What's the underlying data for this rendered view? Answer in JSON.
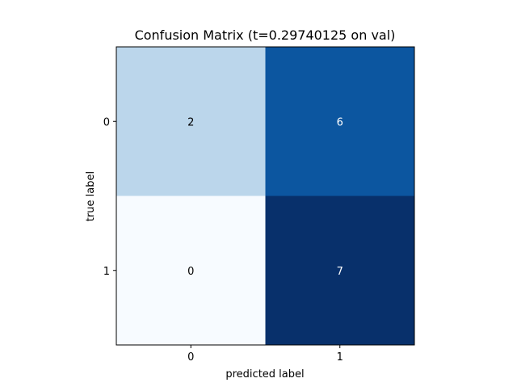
{
  "chart_data": {
    "type": "heatmap",
    "title": "Confusion Matrix (t=0.29740125 on val)",
    "xlabel": "predicted label",
    "ylabel": "true label",
    "x_categories": [
      "0",
      "1"
    ],
    "y_categories": [
      "0",
      "1"
    ],
    "values": [
      [
        2,
        6
      ],
      [
        0,
        7
      ]
    ],
    "value_range": [
      0,
      7
    ],
    "colormap": "Blues",
    "colorscale": [
      "#f7fbff",
      "#deebf7",
      "#c6dbef",
      "#9ecae1",
      "#6baed6",
      "#4292c6",
      "#2171b5",
      "#08519c",
      "#08306b"
    ],
    "grid": false,
    "legend": "none"
  }
}
